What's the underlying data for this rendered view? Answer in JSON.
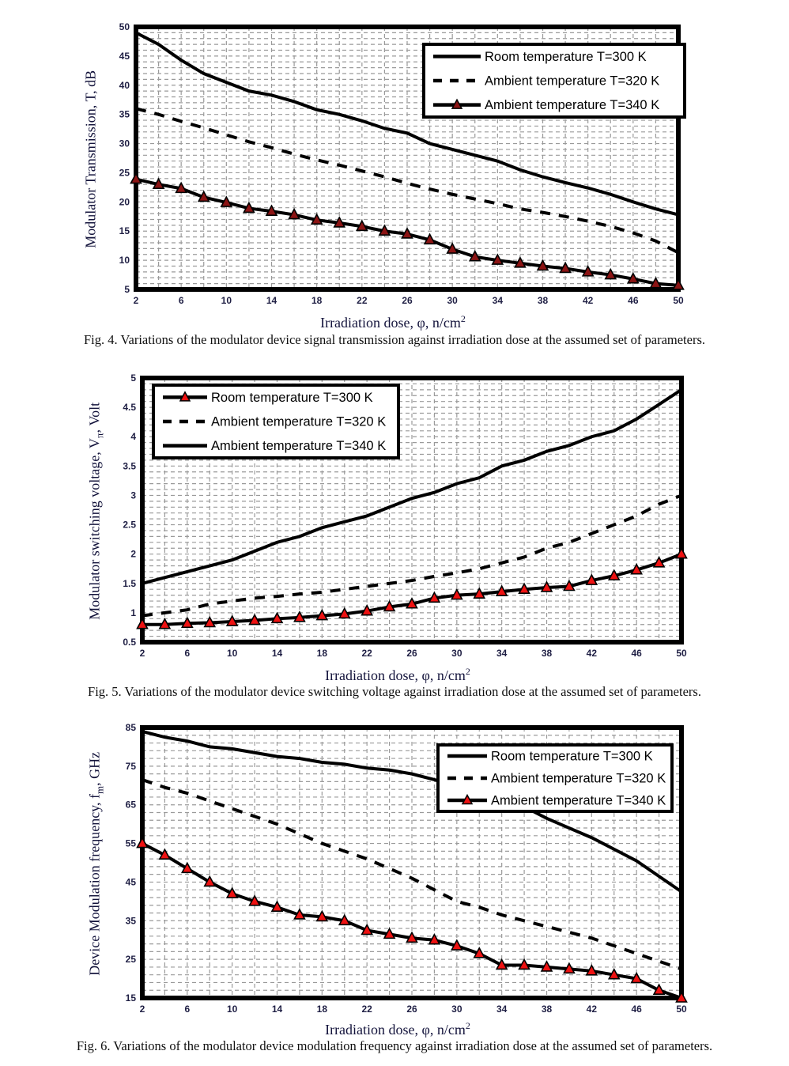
{
  "page": {
    "background": "#ffffff",
    "grid_color": "#9a9a9a",
    "axis_color": "#000000",
    "tick_color": "#1f1f44"
  },
  "figures": [
    {
      "id": "fig4",
      "caption": "Fig. 4. Variations of the modulator device signal transmission against irradiation dose at the assumed set of parameters.",
      "xlabel_pre": "Irradiation dose, φ, n/cm",
      "xlabel_sup": "2",
      "ylabel": {
        "pre": "Modulator Transmission, T, dB",
        "sub": "",
        "post": ""
      },
      "chart_data": {
        "type": "line",
        "title": "",
        "xlabel": "Irradiation dose, φ, n/cm²",
        "ylabel": "Modulator Transmission, T, dB",
        "x": [
          2,
          4,
          6,
          8,
          10,
          12,
          14,
          16,
          18,
          20,
          22,
          24,
          26,
          28,
          30,
          32,
          34,
          36,
          38,
          40,
          42,
          44,
          46,
          48,
          50
        ],
        "xlim": [
          2,
          50
        ],
        "ylim": [
          5,
          50
        ],
        "xticks": [
          2,
          6,
          10,
          14,
          18,
          22,
          26,
          30,
          34,
          38,
          42,
          46,
          50
        ],
        "yticks": [
          5,
          10,
          15,
          20,
          25,
          30,
          35,
          40,
          45,
          50
        ],
        "minor_x_step": 2,
        "minor_y_step": 1,
        "grid": "dashed",
        "legend_position": "top-right",
        "series": [
          {
            "name": "Room temperature T=300 K",
            "style": "solid",
            "color": "#000000",
            "values": [
              49,
              47,
              44.3,
              42,
              40.5,
              39,
              38.3,
              37.2,
              35.8,
              35,
              33.9,
              32.6,
              31.8,
              30,
              29,
              28,
              27,
              25.5,
              24.3,
              23.3,
              22.4,
              21.3,
              20,
              18.8,
              17.8
            ]
          },
          {
            "name": "Ambient temperature T=320 K",
            "style": "dashed",
            "color": "#000000",
            "values": [
              36,
              35,
              33.8,
              32.7,
              31.5,
              30.3,
              29.3,
              28.2,
              27.2,
              26.3,
              25.3,
              24.3,
              23.2,
              22.2,
              21.3,
              20.5,
              19.7,
              18.8,
              18.2,
              17.5,
              16.7,
              15.8,
              14.7,
              13.3,
              11.3
            ]
          },
          {
            "name": "Ambient temperature T=340 K",
            "style": "triangle",
            "color": "#000000",
            "marker_color": "#8b1414",
            "values": [
              23.9,
              23,
              22.3,
              20.8,
              19.9,
              18.9,
              18.4,
              17.8,
              16.9,
              16.4,
              15.8,
              15,
              14.5,
              13.5,
              11.9,
              10.6,
              10,
              9.5,
              9,
              8.6,
              8,
              7.5,
              6.8,
              6,
              5.7
            ]
          }
        ]
      }
    },
    {
      "id": "fig5",
      "caption": "Fig. 5. Variations of the modulator device switching voltage against irradiation dose at the assumed set of parameters.",
      "xlabel_pre": "Irradiation dose, φ, n/cm",
      "xlabel_sup": "2",
      "ylabel": {
        "pre": "Modulator switching voltage, V",
        "sub": "π",
        "post": ", Volt"
      },
      "chart_data": {
        "type": "line",
        "title": "",
        "xlabel": "Irradiation dose, φ, n/cm²",
        "ylabel": "Modulator switching voltage, Vπ, Volt",
        "x": [
          2,
          4,
          6,
          8,
          10,
          12,
          14,
          16,
          18,
          20,
          22,
          24,
          26,
          28,
          30,
          32,
          34,
          36,
          38,
          40,
          42,
          44,
          46,
          48,
          50
        ],
        "xlim": [
          2,
          50
        ],
        "ylim": [
          0.5,
          5
        ],
        "xticks": [
          2,
          6,
          10,
          14,
          18,
          22,
          26,
          30,
          34,
          38,
          42,
          46,
          50
        ],
        "yticks": [
          0.5,
          1,
          1.5,
          2,
          2.5,
          3,
          3.5,
          4,
          4.5,
          5
        ],
        "minor_x_step": 2,
        "minor_y_step": 0.1,
        "grid": "dashed",
        "legend_position": "top-left",
        "series": [
          {
            "name": "Room temperature T=300 K",
            "style": "triangle",
            "color": "#000000",
            "marker_color": "#ee1212",
            "values": [
              0.8,
              0.8,
              0.82,
              0.83,
              0.85,
              0.87,
              0.9,
              0.92,
              0.95,
              0.98,
              1.03,
              1.1,
              1.15,
              1.25,
              1.3,
              1.32,
              1.36,
              1.4,
              1.43,
              1.45,
              1.55,
              1.63,
              1.73,
              1.85,
              2.0
            ]
          },
          {
            "name": "Ambient temperature T=320 K",
            "style": "dashed",
            "color": "#000000",
            "values": [
              0.95,
              1.0,
              1.05,
              1.15,
              1.2,
              1.25,
              1.28,
              1.32,
              1.35,
              1.4,
              1.45,
              1.5,
              1.55,
              1.62,
              1.68,
              1.75,
              1.85,
              1.95,
              2.1,
              2.2,
              2.35,
              2.5,
              2.65,
              2.85,
              3.0
            ]
          },
          {
            "name": "Ambient temperature T=340 K",
            "style": "solid",
            "color": "#000000",
            "values": [
              1.5,
              1.6,
              1.7,
              1.8,
              1.9,
              2.05,
              2.2,
              2.3,
              2.45,
              2.55,
              2.65,
              2.8,
              2.95,
              3.05,
              3.2,
              3.3,
              3.5,
              3.6,
              3.75,
              3.85,
              4.0,
              4.1,
              4.3,
              4.55,
              4.8
            ]
          }
        ]
      }
    },
    {
      "id": "fig6",
      "caption": "Fig. 6. Variations of the modulator device modulation frequency against irradiation dose at the assumed set of parameters.",
      "xlabel_pre": "Irradiation dose, φ, n/cm",
      "xlabel_sup": "2",
      "ylabel": {
        "pre": "Device Modulation frequency, f",
        "sub": "m",
        "post": ", GHz"
      },
      "chart_data": {
        "type": "line",
        "title": "",
        "xlabel": "Irradiation dose, φ, n/cm²",
        "ylabel": "Device Modulation frequency, fm, GHz",
        "x": [
          2,
          4,
          6,
          8,
          10,
          12,
          14,
          16,
          18,
          20,
          22,
          24,
          26,
          28,
          30,
          32,
          34,
          36,
          38,
          40,
          42,
          44,
          46,
          48,
          50
        ],
        "xlim": [
          2,
          50
        ],
        "ylim": [
          15,
          85
        ],
        "xticks": [
          2,
          6,
          10,
          14,
          18,
          22,
          26,
          30,
          34,
          38,
          42,
          46,
          50
        ],
        "yticks": [
          15,
          25,
          35,
          45,
          55,
          65,
          75,
          85
        ],
        "minor_x_step": 2,
        "minor_y_step": 2,
        "grid": "dashed",
        "legend_position": "top-right",
        "series": [
          {
            "name": "Room temperature T=300 K",
            "style": "solid",
            "color": "#000000",
            "values": [
              84,
              82.5,
              81.5,
              80,
              79.5,
              78.5,
              77.5,
              77,
              76,
              75.5,
              74.5,
              74,
              73,
              71.5,
              70,
              68.5,
              66.5,
              64.5,
              61.5,
              59,
              56.5,
              53.5,
              50.5,
              46.5,
              42.5
            ]
          },
          {
            "name": "Ambient temperature T=320 K",
            "style": "dashed",
            "color": "#000000",
            "values": [
              71.5,
              69.5,
              68,
              66,
              64,
              62,
              60,
              57.5,
              55,
              53,
              51,
              48.5,
              46,
              43,
              40,
              38.5,
              36.5,
              35,
              33.5,
              32,
              30.5,
              28.5,
              26.5,
              24.5,
              22.5
            ]
          },
          {
            "name": "Ambient temperature T=340 K",
            "style": "triangle",
            "color": "#000000",
            "marker_color": "#ee1212",
            "values": [
              55,
              52,
              48.5,
              45,
              42,
              40,
              38.5,
              36.5,
              36,
              35,
              32.5,
              31.5,
              30.5,
              30,
              28.5,
              26.5,
              23.5,
              23.5,
              23,
              22.5,
              22,
              21,
              20,
              17,
              15
            ]
          }
        ]
      }
    }
  ]
}
